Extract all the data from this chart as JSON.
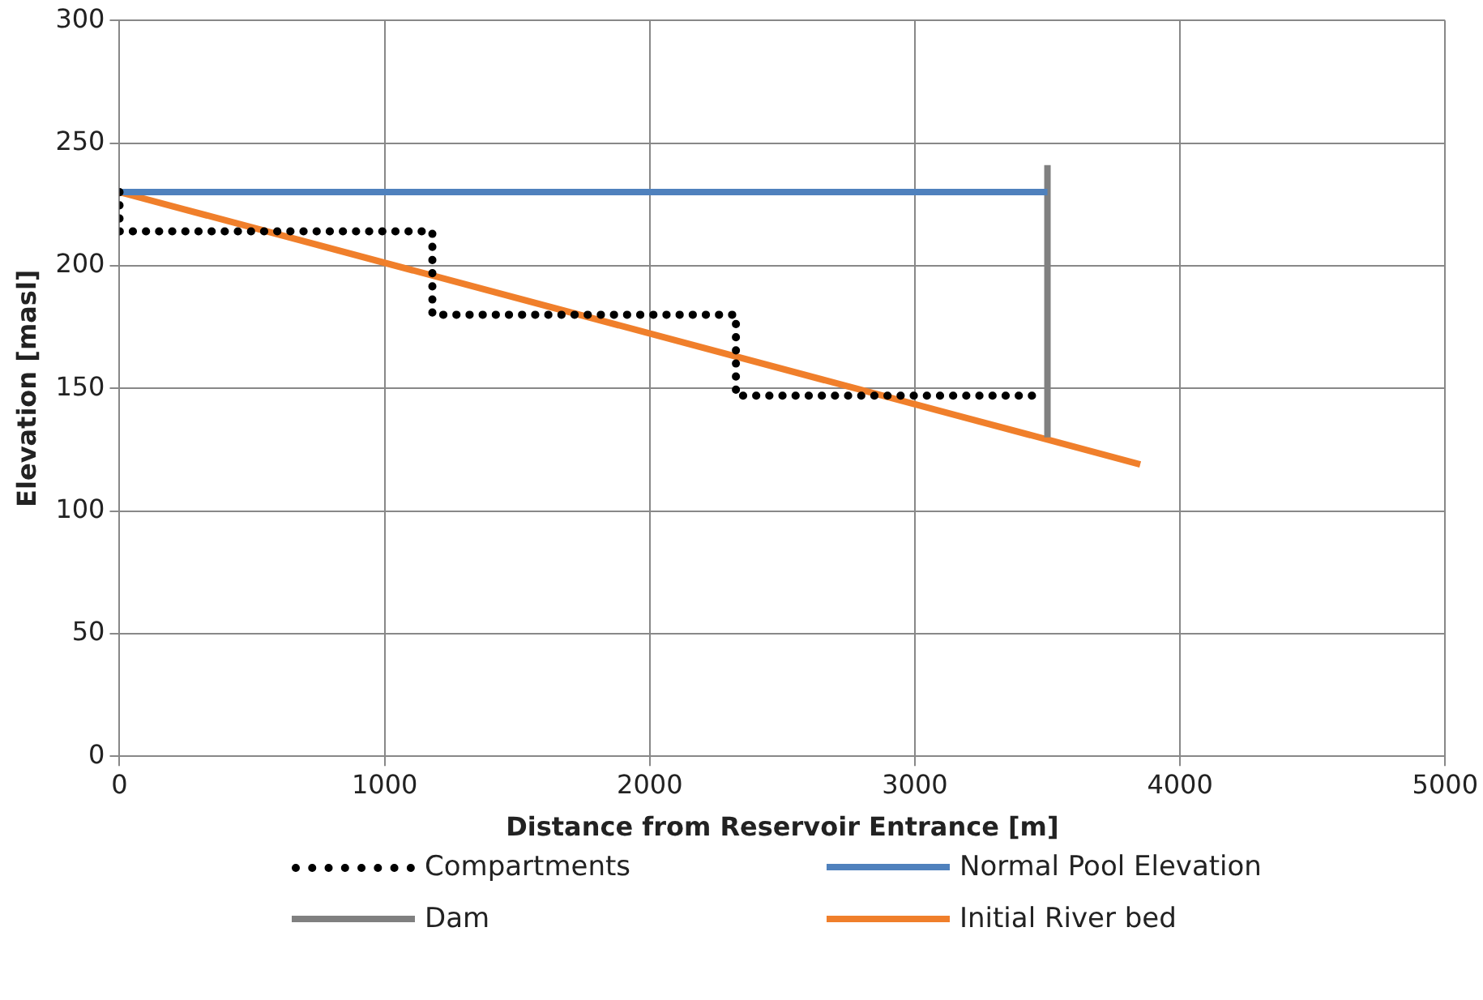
{
  "chart_data": {
    "type": "line",
    "xlabel": "Distance from Reservoir Entrance [m]",
    "ylabel": "Elevation [masl]",
    "xlim": [
      0,
      5000
    ],
    "xticks": [
      0,
      1000,
      2000,
      3000,
      4000,
      5000
    ],
    "ylim": [
      0,
      300
    ],
    "yticks": [
      0,
      50,
      100,
      150,
      200,
      250,
      300
    ],
    "grid": true,
    "legend": "bottom",
    "marker": "none",
    "series": [
      {
        "name": "Compartments",
        "color": "#000000",
        "line_style": "dotted",
        "x": [
          0,
          0,
          1180,
          1180,
          2325,
          2325,
          3470
        ],
        "values": [
          230,
          214,
          214,
          180,
          180,
          147,
          147
        ]
      },
      {
        "name": "Normal Pool Elevation",
        "color": "#4f81bd",
        "line_style": "solid",
        "x": [
          0,
          3500
        ],
        "values": [
          230,
          230
        ]
      },
      {
        "name": "Dam",
        "color": "#808080",
        "line_style": "solid",
        "x": [
          3500,
          3500
        ],
        "values": [
          130,
          241
        ]
      },
      {
        "name": "Initial River bed",
        "color": "#f07f2b",
        "line_style": "solid",
        "x": [
          0,
          3850
        ],
        "values": [
          230,
          119
        ]
      }
    ]
  }
}
